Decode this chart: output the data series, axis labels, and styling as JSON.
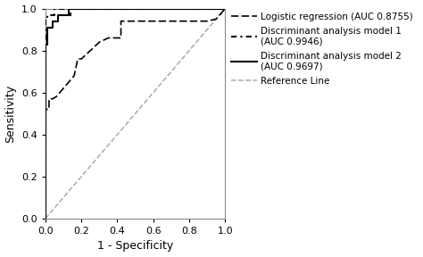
{
  "title": "",
  "xlabel": "1 - Specificity",
  "ylabel": "Sensitivity",
  "xlim": [
    0.0,
    1.0
  ],
  "ylim": [
    0.0,
    1.0
  ],
  "xticks": [
    0.0,
    0.2,
    0.4,
    0.6,
    0.8,
    1.0
  ],
  "yticks": [
    0.0,
    0.2,
    0.4,
    0.6,
    0.8,
    1.0
  ],
  "reference_line": {
    "color": "#aaaaaa",
    "linestyle": "--",
    "linewidth": 1.1,
    "label": "Reference Line"
  },
  "logistic_regression": {
    "label": "Logistic regression (AUC 0.8755)",
    "color": "#000000",
    "linestyle": "--",
    "linewidth": 1.2,
    "dashes": [
      4,
      2,
      4,
      2
    ],
    "x": [
      0.0,
      0.0,
      0.02,
      0.02,
      0.04,
      0.06,
      0.08,
      0.1,
      0.12,
      0.14,
      0.16,
      0.18,
      0.2,
      0.25,
      0.3,
      0.35,
      0.4,
      0.42,
      0.42,
      0.5,
      0.55,
      0.6,
      0.65,
      0.7,
      0.75,
      0.8,
      0.85,
      0.9,
      0.95,
      1.0
    ],
    "y": [
      0.0,
      0.52,
      0.52,
      0.57,
      0.57,
      0.58,
      0.6,
      0.62,
      0.64,
      0.66,
      0.68,
      0.76,
      0.76,
      0.8,
      0.84,
      0.86,
      0.86,
      0.86,
      0.94,
      0.94,
      0.94,
      0.94,
      0.94,
      0.94,
      0.94,
      0.94,
      0.94,
      0.94,
      0.95,
      1.0
    ]
  },
  "discriminant1": {
    "label": "Discriminant analysis model 1\n(AUC 0.9946)",
    "color": "#000000",
    "linestyle": "-.",
    "linewidth": 1.5,
    "x": [
      0.0,
      0.0,
      0.01,
      0.01,
      0.02,
      0.05,
      0.05,
      0.13,
      0.13,
      0.14,
      0.14,
      0.18,
      0.18,
      1.0
    ],
    "y": [
      0.0,
      0.95,
      0.95,
      0.97,
      0.97,
      0.97,
      1.0,
      1.0,
      0.97,
      0.97,
      1.0,
      1.0,
      1.0,
      1.0
    ]
  },
  "discriminant2": {
    "label": "Discriminant analysis model 2\n(AUC 0.9697)",
    "color": "#000000",
    "linestyle": "-",
    "linewidth": 1.5,
    "x": [
      0.0,
      0.0,
      0.01,
      0.01,
      0.04,
      0.04,
      0.07,
      0.07,
      0.13,
      0.13,
      0.17,
      0.17,
      1.0
    ],
    "y": [
      0.0,
      0.83,
      0.83,
      0.91,
      0.91,
      0.94,
      0.94,
      0.97,
      0.97,
      1.0,
      1.0,
      1.0,
      1.0
    ]
  },
  "background_color": "#ffffff",
  "tick_fontsize": 8,
  "label_fontsize": 9,
  "legend_fontsize": 7.5,
  "figsize": [
    4.74,
    2.88
  ],
  "dpi": 100
}
